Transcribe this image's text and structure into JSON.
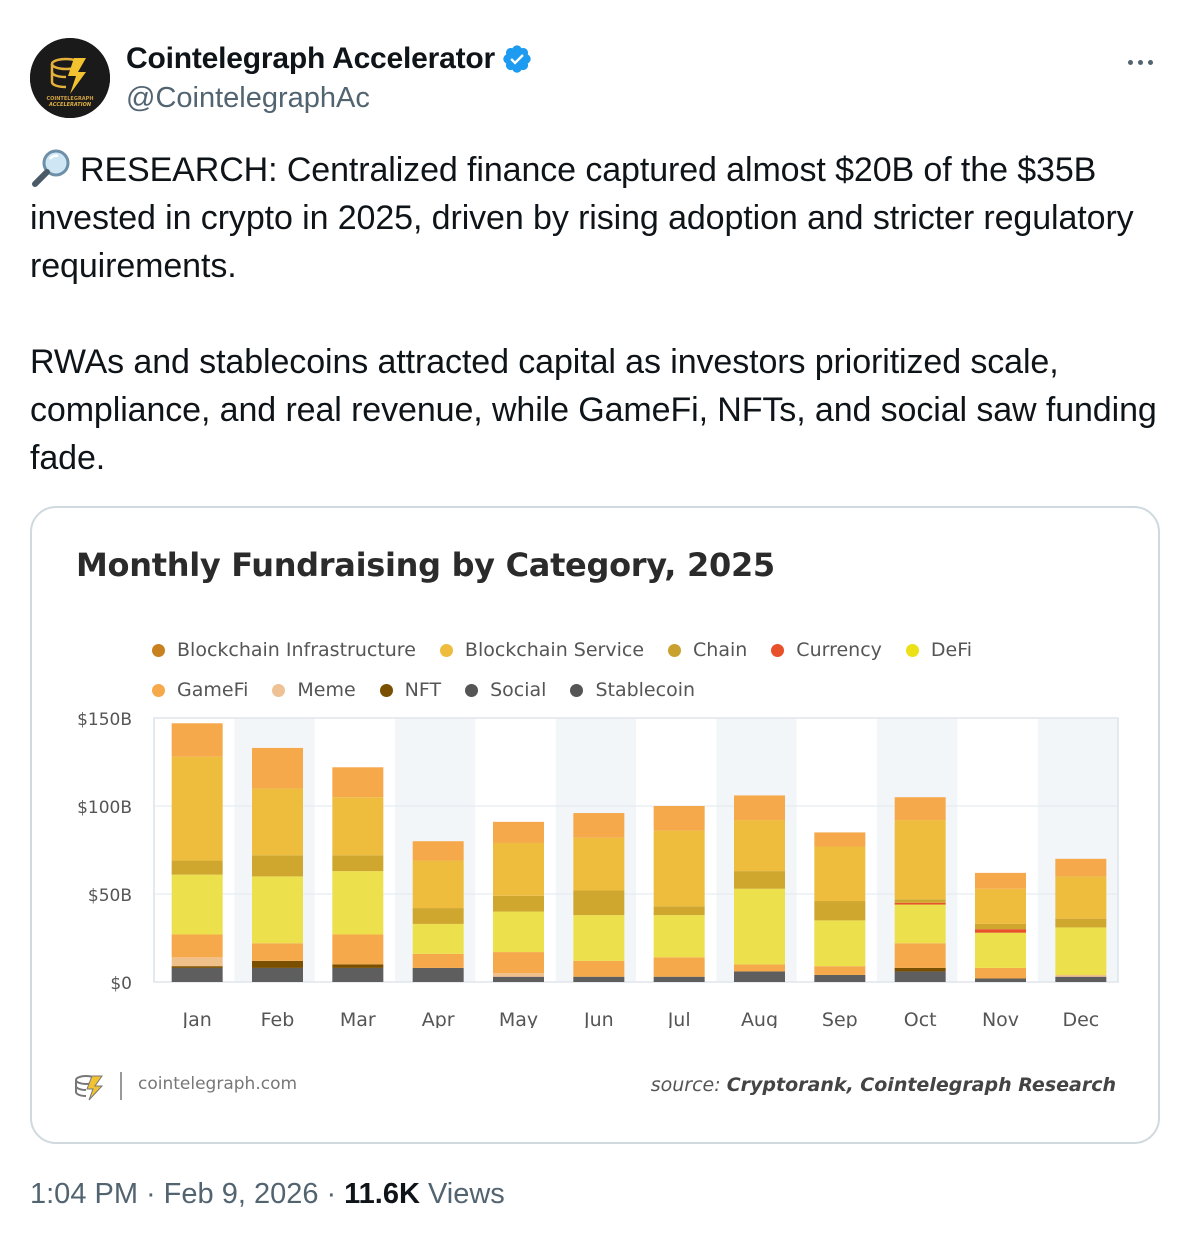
{
  "author": {
    "display_name": "Cointelegraph Accelerator",
    "handle": "@CointelegraphAc",
    "verified": true,
    "avatar_text_top": "COINTELEGRAPH",
    "avatar_text_bottom": "ACCELERATION"
  },
  "tweet": {
    "paragraph_1": "RESEARCH: Centralized finance captured almost $20B of the $35B invested in crypto in 2025, driven by rising adoption and stricter regulatory requirements.",
    "paragraph_2": "RWAs and stablecoins attracted capital as investors prioritized scale, compliance, and real revenue, while GameFi, NFTs, and social saw funding fade.",
    "lead_icon": "magnifying-glass-icon"
  },
  "card": {
    "site": "cointelegraph.com",
    "source_prefix": "source:",
    "source_text": "Cryptorank, Cointelegraph Research"
  },
  "meta": {
    "time": "1:04 PM",
    "date": "Feb 9, 2026",
    "views_count": "11.6K",
    "views_label": "Views",
    "dot": "·"
  },
  "chart_data": {
    "type": "bar",
    "stacked": true,
    "title": "Monthly Fundraising by Category, 2025",
    "categories": [
      "Jan",
      "Feb",
      "Mar",
      "Apr",
      "May",
      "Jun",
      "Jul",
      "Aug",
      "Sep",
      "Oct",
      "Nov",
      "Dec"
    ],
    "yticks": [
      "$0",
      "$50B",
      "$100B",
      "$150B"
    ],
    "ytick_values": [
      0,
      50,
      100,
      150
    ],
    "ylim": [
      0,
      150
    ],
    "unit": "$B",
    "grid": true,
    "legend_position": "top",
    "series": [
      {
        "name": "Stablecoin",
        "color": "#5e5e5e",
        "values": [
          8,
          8,
          8,
          8,
          3,
          3,
          3,
          6,
          4,
          6,
          2,
          3
        ]
      },
      {
        "name": "Social",
        "color": "#6e6e6e",
        "values": [
          0,
          0,
          0,
          0,
          0,
          0,
          0,
          0,
          0,
          0,
          0,
          0
        ]
      },
      {
        "name": "NFT",
        "color": "#7a4f00",
        "values": [
          1,
          4,
          2,
          0,
          0,
          0,
          0,
          0,
          0,
          2,
          0,
          0
        ]
      },
      {
        "name": "Meme",
        "color": "#f0c08a",
        "values": [
          5,
          0,
          0,
          0,
          2,
          0,
          0,
          0,
          0,
          0,
          0,
          1
        ]
      },
      {
        "name": "GameFi",
        "color": "#f6a94a",
        "values": [
          13,
          10,
          17,
          8,
          12,
          9,
          11,
          4,
          5,
          14,
          6,
          0
        ]
      },
      {
        "name": "DeFi",
        "color": "#ece04c",
        "values": [
          34,
          38,
          36,
          17,
          23,
          26,
          24,
          43,
          26,
          22,
          20,
          27
        ]
      },
      {
        "name": "Currency",
        "color": "#e8502a",
        "values": [
          0,
          0,
          0,
          0,
          0,
          0,
          0,
          0,
          0,
          1,
          2,
          0
        ]
      },
      {
        "name": "Chain",
        "color": "#cfa72e",
        "values": [
          8,
          12,
          9,
          9,
          9,
          14,
          5,
          10,
          11,
          2,
          3,
          5
        ]
      },
      {
        "name": "Blockchain Service",
        "color": "#efbd3e",
        "values": [
          59,
          38,
          33,
          27,
          30,
          30,
          43,
          29,
          31,
          45,
          20,
          24
        ]
      },
      {
        "name": "Blockchain Infrastructure",
        "color": "#f5a94b",
        "values": [
          19,
          23,
          17,
          11,
          12,
          14,
          14,
          14,
          8,
          13,
          9,
          10
        ]
      }
    ],
    "legend": [
      [
        "Blockchain Infrastructure",
        "Blockchain Service",
        "Chain",
        "Currency",
        "DeFi"
      ],
      [
        "GameFi",
        "Meme",
        "NFT",
        "Social",
        "Stablecoin"
      ]
    ],
    "legend_colors": {
      "Blockchain Infrastructure": "#c9801f",
      "Blockchain Service": "#efbd3e",
      "Chain": "#c9a12e",
      "Currency": "#e8502a",
      "DeFi": "#ece016",
      "GameFi": "#f6a94a",
      "Meme": "#eec294",
      "NFT": "#7a4f00",
      "Social": "#555555",
      "Stablecoin": "#555555"
    }
  }
}
